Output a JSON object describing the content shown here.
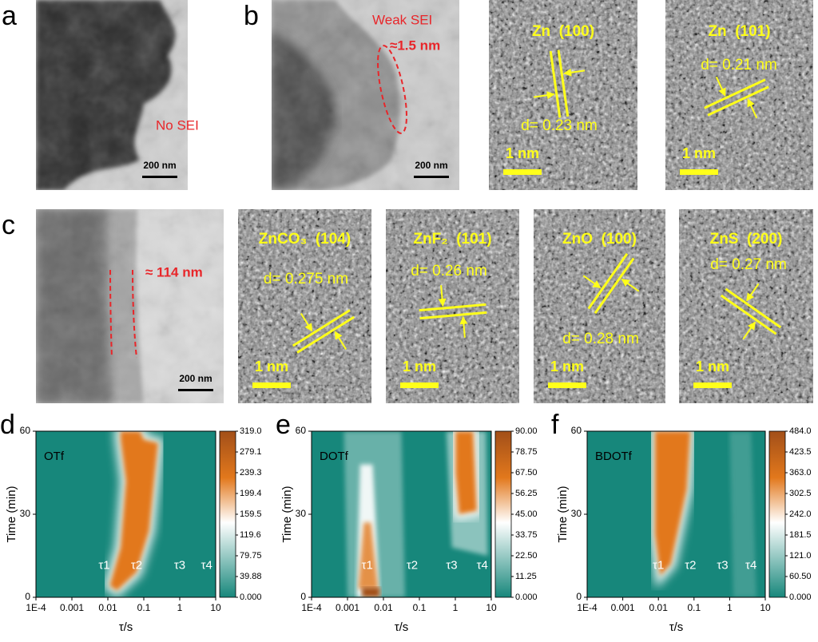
{
  "figure": {
    "images": [
      {
        "panel": "a",
        "annotation": "No SEI",
        "scale_bar": "200 nm"
      },
      {
        "panel": "b",
        "annotation": "Weak SEI",
        "thickness": "≈1.5 nm",
        "scale_bar": "200 nm"
      },
      {
        "title": "Zn  (100)",
        "spacing": "d= 0.23 nm",
        "scale_bar": "1 nm"
      },
      {
        "title": "Zn  (101)",
        "spacing": "d= 0.21 nm",
        "scale_bar": "1 nm"
      },
      {
        "panel": "c",
        "thickness": "≈ 114 nm",
        "scale_bar": "200 nm"
      },
      {
        "title": "ZnCO₃  (104)",
        "spacing": "d= 0.275 nm",
        "scale_bar": "1 nm"
      },
      {
        "title": "ZnF₂  (101)",
        "spacing": "d= 0.26 nm",
        "scale_bar": "1 nm"
      },
      {
        "title": "ZnO  (100)",
        "spacing": "d= 0.28 nm",
        "scale_bar": "1 nm"
      },
      {
        "title": "ZnS  (200)",
        "spacing": "d= 0.27 nm",
        "scale_bar": "1 nm"
      }
    ]
  },
  "chart_data": [
    {
      "type": "contour",
      "panel": "d",
      "label": "OTf",
      "xlabel": "τ/s",
      "ylabel": "Time (min)",
      "log_x": true,
      "xlim": [
        0.0001,
        10
      ],
      "xticks": [
        {
          "value": 0.0001,
          "label": "1E-4"
        },
        0.001,
        0.01,
        0.1,
        1,
        10
      ],
      "ylim": [
        0,
        60
      ],
      "yticks": [
        0,
        30,
        60
      ],
      "annotations": [
        "τ1",
        "τ2",
        "τ3",
        "τ4"
      ],
      "colors": [
        "#17877b",
        "#ffffff",
        "#e2781c",
        "#a24f19"
      ],
      "clim": [
        0,
        319
      ],
      "cticks": [
        {
          "value": 319,
          "label": "319.0"
        },
        279.1,
        239.3,
        199.4,
        159.5,
        119.6,
        79.75,
        39.88,
        {
          "value": 0,
          "label": "0.000"
        }
      ]
    },
    {
      "type": "contour",
      "panel": "e",
      "label": "DOTf",
      "xlabel": "τ/s",
      "ylabel": "Time (min)",
      "log_x": true,
      "xlim": [
        0.0001,
        10
      ],
      "xticks": [
        {
          "value": 0.0001,
          "label": "1E-4"
        },
        0.001,
        0.01,
        0.1,
        1,
        10
      ],
      "ylim": [
        0,
        60
      ],
      "yticks": [
        0,
        30,
        60
      ],
      "annotations": [
        "τ1",
        "τ2",
        "τ3",
        "τ4"
      ],
      "colors": [
        "#17877b",
        "#ffffff",
        "#e2781c",
        "#a24f19"
      ],
      "clim": [
        0,
        90
      ],
      "cticks": [
        {
          "value": 90,
          "label": "90.00"
        },
        78.75,
        {
          "value": 67.5,
          "label": "67.50"
        },
        56.25,
        {
          "value": 45,
          "label": "45.00"
        },
        33.75,
        {
          "value": 22.5,
          "label": "22.50"
        },
        11.25,
        {
          "value": 0,
          "label": "0.000"
        }
      ]
    },
    {
      "type": "contour",
      "panel": "f",
      "label": "BDOTf",
      "xlabel": "τ/s",
      "ylabel": "Time (min)",
      "log_x": true,
      "xlim": [
        0.0001,
        10
      ],
      "xticks": [
        {
          "value": 0.0001,
          "label": "1E-4"
        },
        0.001,
        0.01,
        0.1,
        1,
        10
      ],
      "ylim": [
        0,
        60
      ],
      "yticks": [
        0,
        30,
        60
      ],
      "annotations": [
        "τ1",
        "τ2",
        "τ3",
        "τ4"
      ],
      "colors": [
        "#17877b",
        "#ffffff",
        "#e2781c",
        "#a24f19"
      ],
      "clim": [
        0,
        484
      ],
      "cticks": [
        {
          "value": 484,
          "label": "484.0"
        },
        423.5,
        {
          "value": 363,
          "label": "363.0"
        },
        302.5,
        {
          "value": 242,
          "label": "242.0"
        },
        181.5,
        {
          "value": 121,
          "label": "121.0"
        },
        {
          "value": 60.5,
          "label": "60.50"
        },
        {
          "value": 0,
          "label": "0.000"
        }
      ]
    }
  ]
}
